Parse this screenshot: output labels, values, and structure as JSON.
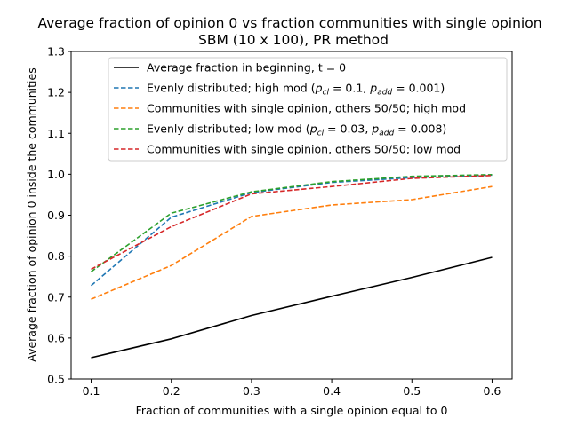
{
  "chart_data": {
    "type": "line",
    "title": "Average fraction of opinion 0 vs fraction communities with single opinion",
    "subtitle": "SBM (10 x 100), PR method",
    "xlabel": "Fraction of communities with a single opinion equal to 0",
    "ylabel": "Average fraction of opinion 0 inside the communities",
    "xlim": [
      0.075,
      0.625
    ],
    "ylim": [
      0.5,
      1.3
    ],
    "x_ticks": [
      "0.1",
      "0.2",
      "0.3",
      "0.4",
      "0.5",
      "0.6"
    ],
    "y_ticks": [
      "0.5",
      "0.6",
      "0.7",
      "0.8",
      "0.9",
      "1.0",
      "1.1",
      "1.2",
      "1.3"
    ],
    "x": [
      0.1,
      0.2,
      0.3,
      0.4,
      0.5,
      0.6
    ],
    "legend_position": "top-right",
    "grid": false,
    "series": [
      {
        "name": "Average fraction in beginning, t = 0",
        "color": "#000000",
        "style": "solid",
        "values": [
          0.552,
          0.598,
          0.655,
          0.702,
          0.748,
          0.797
        ]
      },
      {
        "name": "Evenly distributed; high mod (p_cl = 0.1, p_add = 0.001)",
        "legend_prefix": "Evenly distributed; high mod (",
        "legend_p_cl": "0.1",
        "legend_p_add": "0.001",
        "color": "#1f77b4",
        "style": "dashed",
        "values": [
          0.728,
          0.895,
          0.955,
          0.98,
          0.992,
          0.998
        ]
      },
      {
        "name": "Communities with single opinion, others 50/50; high mod",
        "color": "#ff7f0e",
        "style": "dashed",
        "values": [
          0.695,
          0.777,
          0.897,
          0.925,
          0.938,
          0.97
        ]
      },
      {
        "name": "Evenly distributed; low mod (p_cl = 0.03, p_add = 0.008)",
        "legend_prefix": "Evenly distributed; low mod (",
        "legend_p_cl": "0.03",
        "legend_p_add": "0.008",
        "color": "#2ca02c",
        "style": "dashed",
        "values": [
          0.762,
          0.905,
          0.957,
          0.982,
          0.995,
          0.999
        ]
      },
      {
        "name": "Communities with single opinion, others 50/50; low mod",
        "color": "#d62728",
        "style": "dashed",
        "values": [
          0.768,
          0.872,
          0.952,
          0.97,
          0.99,
          0.997
        ]
      }
    ]
  }
}
